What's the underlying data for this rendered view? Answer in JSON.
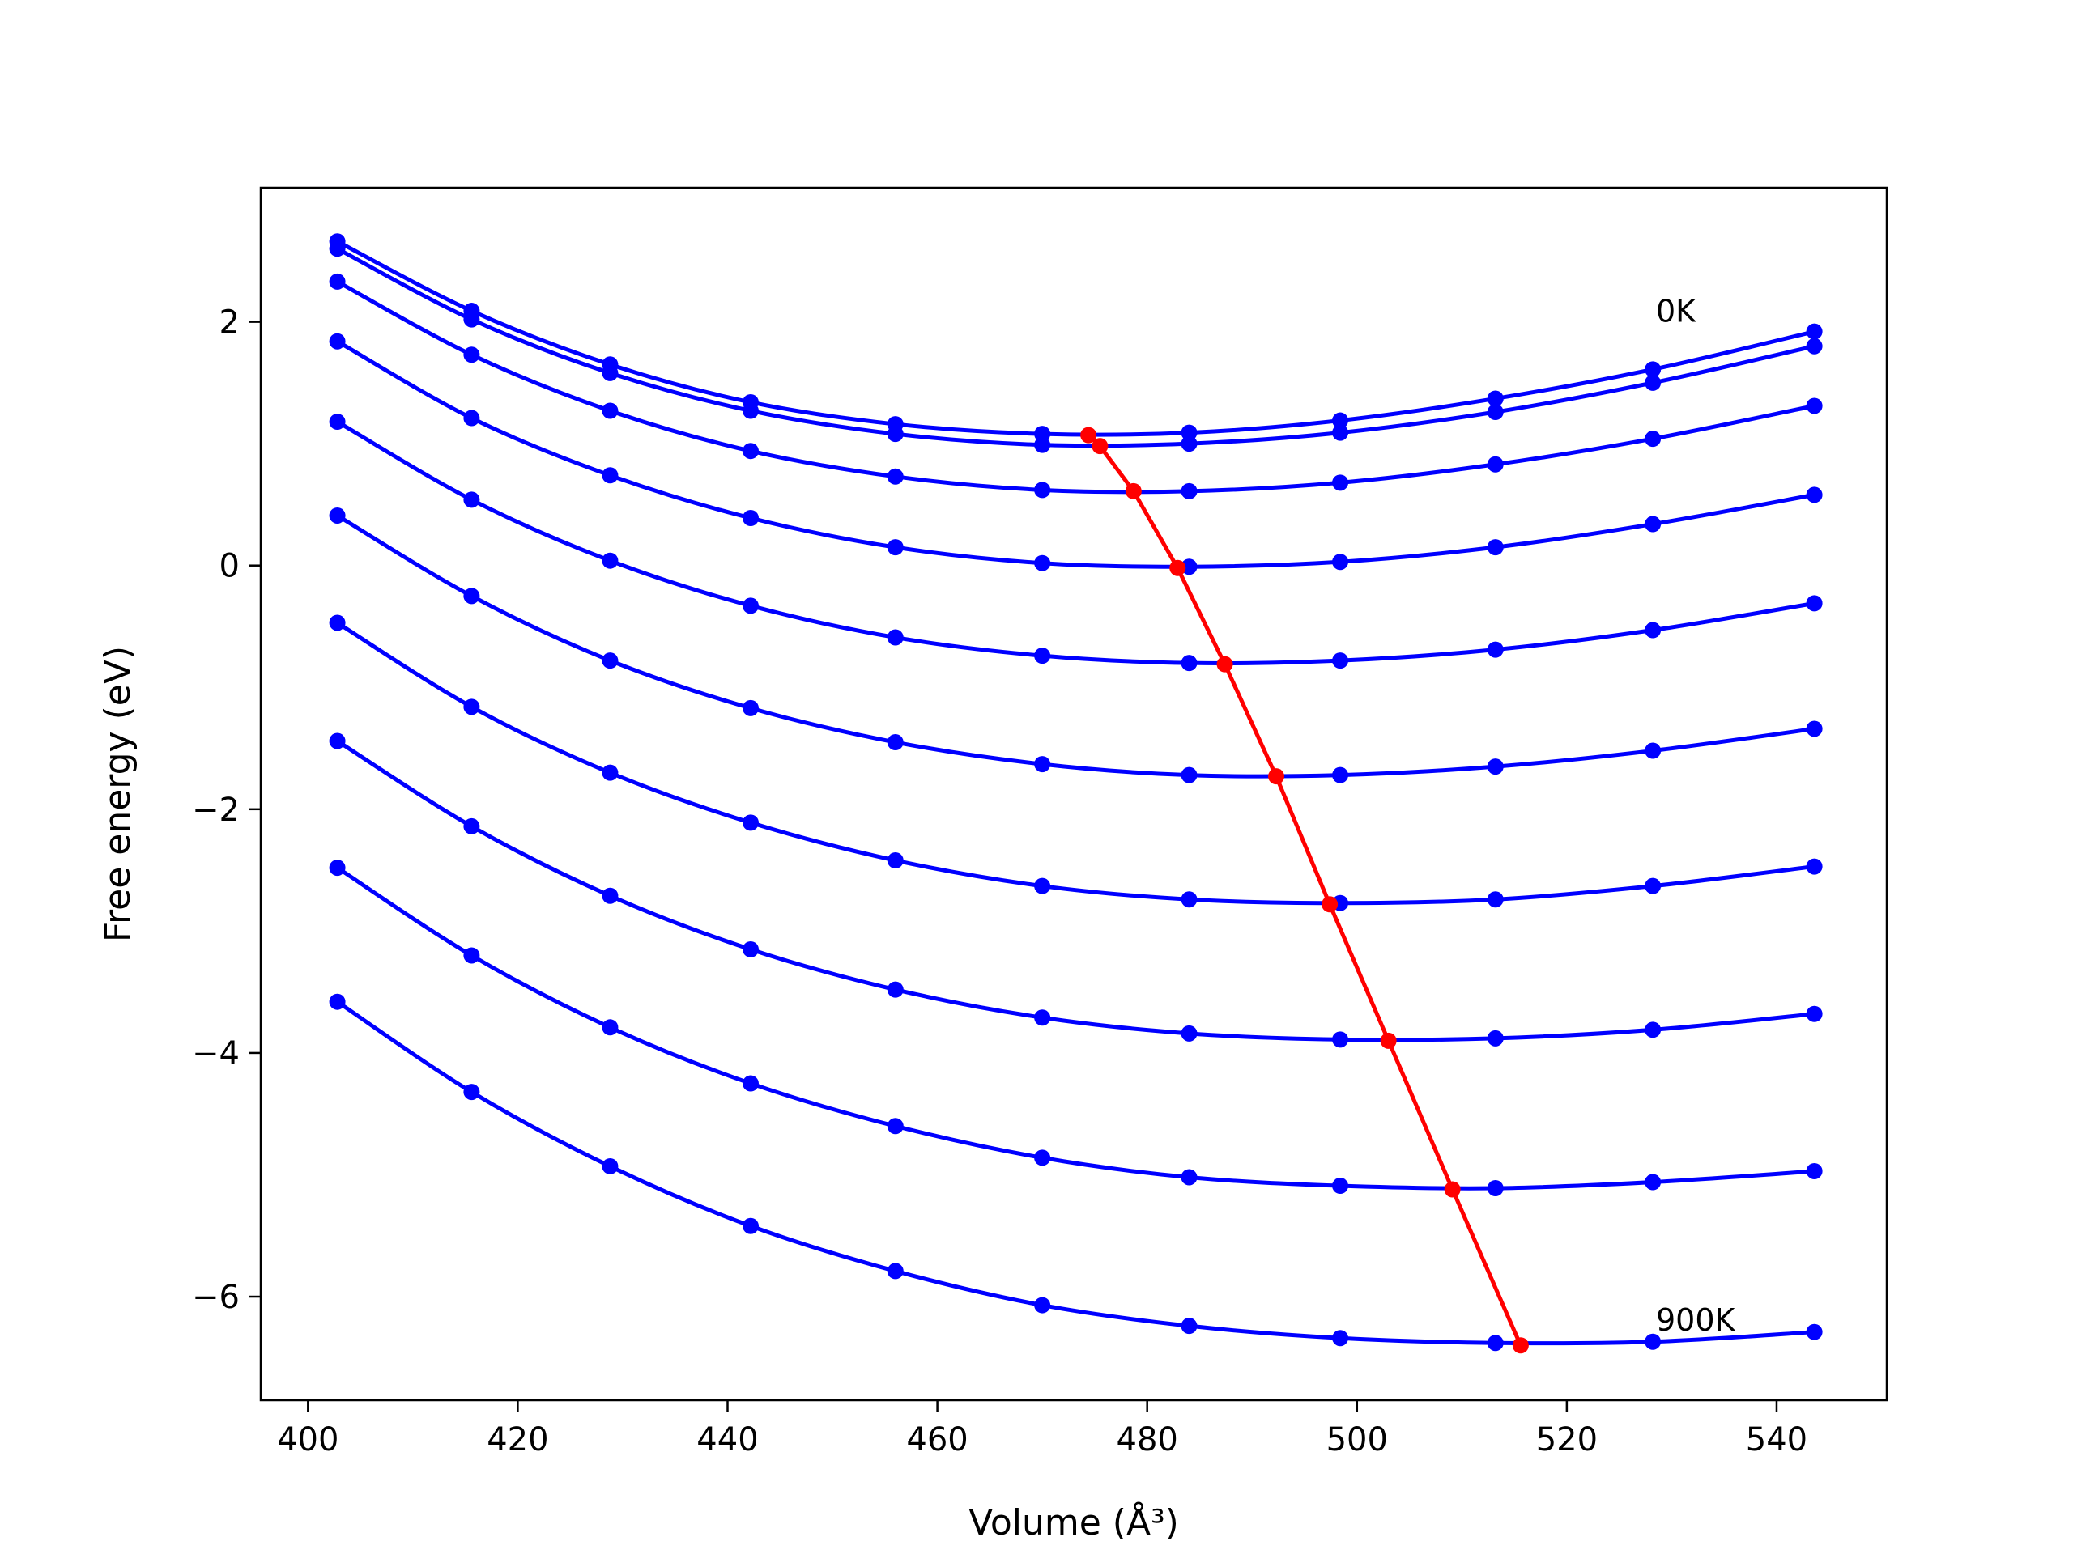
{
  "chart_data": {
    "type": "line",
    "title": "",
    "xlabel": "Volume (Å³)",
    "ylabel": "Free energy (eV)",
    "xlim": [
      395.5,
      550.5
    ],
    "ylim": [
      -6.85,
      3.1
    ],
    "xticks": [
      400,
      420,
      440,
      460,
      480,
      500,
      520,
      540
    ],
    "yticks": [
      -6,
      -4,
      -2,
      0,
      2
    ],
    "ytick_labels": [
      "−6",
      "−4",
      "−2",
      "0",
      "2"
    ],
    "grid": false,
    "legend": "none",
    "colors": {
      "curves": "#0000ff",
      "equilibrium": "#ff0000",
      "frame": "#000000"
    },
    "volumes": [
      402.8,
      415.6,
      428.8,
      442.2,
      456.0,
      470.0,
      484.0,
      498.4,
      513.2,
      528.2,
      543.6
    ],
    "series": [
      {
        "values": [
          2.66,
          2.09,
          1.65,
          1.34,
          1.16,
          1.08,
          1.09,
          1.19,
          1.37,
          1.61,
          1.92
        ]
      },
      {
        "values": [
          2.6,
          2.02,
          1.58,
          1.27,
          1.08,
          0.99,
          1.0,
          1.09,
          1.26,
          1.5,
          1.8
        ]
      },
      {
        "values": [
          2.33,
          1.73,
          1.27,
          0.94,
          0.73,
          0.62,
          0.61,
          0.68,
          0.83,
          1.04,
          1.31
        ]
      },
      {
        "values": [
          1.84,
          1.21,
          0.74,
          0.39,
          0.15,
          0.02,
          -0.01,
          0.03,
          0.15,
          0.34,
          0.58
        ]
      },
      {
        "values": [
          1.18,
          0.54,
          0.04,
          -0.33,
          -0.59,
          -0.74,
          -0.8,
          -0.78,
          -0.69,
          -0.53,
          -0.31
        ]
      },
      {
        "values": [
          0.41,
          -0.25,
          -0.78,
          -1.17,
          -1.45,
          -1.63,
          -1.72,
          -1.72,
          -1.65,
          -1.52,
          -1.34
        ]
      },
      {
        "values": [
          -0.47,
          -1.16,
          -1.7,
          -2.11,
          -2.42,
          -2.63,
          -2.74,
          -2.77,
          -2.74,
          -2.63,
          -2.47
        ]
      },
      {
        "values": [
          -1.44,
          -2.14,
          -2.71,
          -3.15,
          -3.48,
          -3.71,
          -3.84,
          -3.89,
          -3.88,
          -3.81,
          -3.68
        ]
      },
      {
        "values": [
          -2.48,
          -3.2,
          -3.79,
          -4.25,
          -4.6,
          -4.86,
          -5.02,
          -5.09,
          -5.11,
          -5.06,
          -4.97
        ]
      },
      {
        "values": [
          -3.58,
          -4.32,
          -4.93,
          -5.42,
          -5.79,
          -6.07,
          -6.24,
          -6.34,
          -6.38,
          -6.37,
          -6.29
        ]
      }
    ],
    "minima": {
      "x": [
        474.4,
        475.5,
        478.7,
        482.9,
        487.4,
        492.3,
        497.4,
        503.0,
        509.1,
        515.6
      ],
      "y": [
        1.07,
        0.98,
        0.61,
        -0.02,
        -0.81,
        -1.73,
        -2.78,
        -3.9,
        -5.12,
        -6.4
      ]
    },
    "annotations": [
      {
        "text": "0K",
        "x": 528.5,
        "y": 2.0
      },
      {
        "text": "900K",
        "x": 528.5,
        "y": -6.28
      }
    ]
  }
}
